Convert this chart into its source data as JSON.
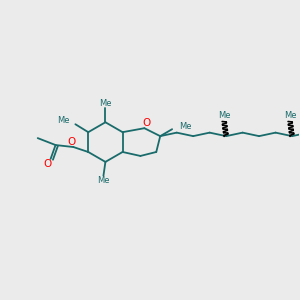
{
  "bg_color": "#ebebeb",
  "bond_color": "#1a6b6b",
  "oxygen_color": "#ff0000",
  "lw": 1.3,
  "figsize": [
    3.0,
    3.0
  ],
  "dpi": 100,
  "xlim": [
    0,
    300
  ],
  "ylim": [
    0,
    300
  ]
}
